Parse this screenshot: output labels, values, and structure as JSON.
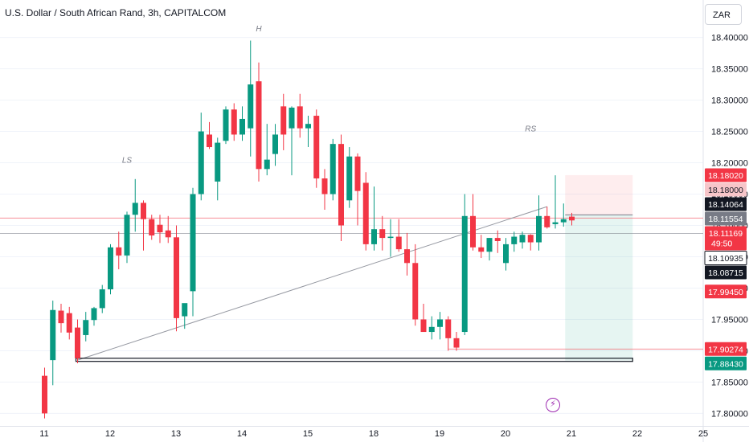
{
  "header": {
    "title": "U.S. Dollar / South African Rand, 3h, CAPITALCOM",
    "currency": "ZAR"
  },
  "colors": {
    "up": "#089981",
    "down": "#f23645",
    "grid": "#f0f3fa",
    "text": "#131722",
    "neutral": "#787b86",
    "marker": "#9c27b0"
  },
  "icons": {
    "event_marker": "lightning-bolt-icon"
  },
  "chart_data": {
    "type": "candlestick",
    "title": "U.S. Dollar / South African Rand, 3h, CAPITALCOM",
    "ylim": [
      17.78,
      18.42
    ],
    "y_ticks": [
      "18.40000",
      "18.35000",
      "18.30000",
      "18.25000",
      "18.20000",
      "18.15000",
      "18.10000",
      "18.05000",
      "18.00000",
      "17.95000",
      "17.90000",
      "17.85000",
      "17.80000"
    ],
    "x_ticks": [
      {
        "label": "11",
        "bar": 0
      },
      {
        "label": "12",
        "bar": 8
      },
      {
        "label": "13",
        "bar": 16
      },
      {
        "label": "14",
        "bar": 24
      },
      {
        "label": "15",
        "bar": 32
      },
      {
        "label": "18",
        "bar": 40
      },
      {
        "label": "19",
        "bar": 48
      },
      {
        "label": "20",
        "bar": 56
      },
      {
        "label": "21",
        "bar": 64
      },
      {
        "label": "22",
        "bar": 72
      },
      {
        "label": "25",
        "bar": 80
      }
    ],
    "candles": [
      {
        "o": 17.86,
        "h": 17.873,
        "l": 17.792,
        "c": 17.8
      },
      {
        "o": 17.885,
        "h": 17.98,
        "l": 17.845,
        "c": 17.965
      },
      {
        "o": 17.964,
        "h": 17.975,
        "l": 17.929,
        "c": 17.944
      },
      {
        "o": 17.96,
        "h": 17.97,
        "l": 17.918,
        "c": 17.929
      },
      {
        "o": 17.937,
        "h": 17.95,
        "l": 17.88,
        "c": 17.888
      },
      {
        "o": 17.925,
        "h": 17.962,
        "l": 17.915,
        "c": 17.949
      },
      {
        "o": 17.949,
        "h": 17.97,
        "l": 17.94,
        "c": 17.968
      },
      {
        "o": 17.968,
        "h": 18.005,
        "l": 17.96,
        "c": 17.998
      },
      {
        "o": 17.998,
        "h": 18.07,
        "l": 17.99,
        "c": 18.065
      },
      {
        "o": 18.065,
        "h": 18.09,
        "l": 18.03,
        "c": 18.052
      },
      {
        "o": 18.052,
        "h": 18.122,
        "l": 18.04,
        "c": 18.117
      },
      {
        "o": 18.117,
        "h": 18.174,
        "l": 18.09,
        "c": 18.136
      },
      {
        "o": 18.136,
        "h": 18.14,
        "l": 18.06,
        "c": 18.11
      },
      {
        "o": 18.11,
        "h": 18.117,
        "l": 18.077,
        "c": 18.084
      },
      {
        "o": 18.101,
        "h": 18.117,
        "l": 18.072,
        "c": 18.089
      },
      {
        "o": 18.092,
        "h": 18.115,
        "l": 18.072,
        "c": 18.081
      },
      {
        "o": 18.081,
        "h": 18.1,
        "l": 17.931,
        "c": 17.952
      },
      {
        "o": 17.955,
        "h": 17.972,
        "l": 17.935,
        "c": 17.976
      },
      {
        "o": 17.995,
        "h": 18.16,
        "l": 17.955,
        "c": 18.15
      },
      {
        "o": 18.15,
        "h": 18.28,
        "l": 18.14,
        "c": 18.25
      },
      {
        "o": 18.245,
        "h": 18.265,
        "l": 18.222,
        "c": 18.225
      },
      {
        "o": 18.17,
        "h": 18.24,
        "l": 18.14,
        "c": 18.232
      },
      {
        "o": 18.235,
        "h": 18.29,
        "l": 18.23,
        "c": 18.285
      },
      {
        "o": 18.285,
        "h": 18.295,
        "l": 18.235,
        "c": 18.245
      },
      {
        "o": 18.245,
        "h": 18.29,
        "l": 18.235,
        "c": 18.27
      },
      {
        "o": 18.255,
        "h": 18.395,
        "l": 18.21,
        "c": 18.325
      },
      {
        "o": 18.33,
        "h": 18.36,
        "l": 18.17,
        "c": 18.19
      },
      {
        "o": 18.19,
        "h": 18.262,
        "l": 18.18,
        "c": 18.205
      },
      {
        "o": 18.214,
        "h": 18.262,
        "l": 18.195,
        "c": 18.245
      },
      {
        "o": 18.29,
        "h": 18.31,
        "l": 18.22,
        "c": 18.245
      },
      {
        "o": 18.255,
        "h": 18.29,
        "l": 18.18,
        "c": 18.288
      },
      {
        "o": 18.29,
        "h": 18.31,
        "l": 18.24,
        "c": 18.255
      },
      {
        "o": 18.255,
        "h": 18.275,
        "l": 18.225,
        "c": 18.262
      },
      {
        "o": 18.275,
        "h": 18.285,
        "l": 18.16,
        "c": 18.175
      },
      {
        "o": 18.175,
        "h": 18.19,
        "l": 18.125,
        "c": 18.15
      },
      {
        "o": 18.15,
        "h": 18.238,
        "l": 18.14,
        "c": 18.23
      },
      {
        "o": 18.23,
        "h": 18.245,
        "l": 18.075,
        "c": 18.1
      },
      {
        "o": 18.14,
        "h": 18.225,
        "l": 18.128,
        "c": 18.21
      },
      {
        "o": 18.21,
        "h": 18.215,
        "l": 18.1,
        "c": 18.155
      },
      {
        "o": 18.168,
        "h": 18.185,
        "l": 18.06,
        "c": 18.07
      },
      {
        "o": 18.07,
        "h": 18.162,
        "l": 18.06,
        "c": 18.094
      },
      {
        "o": 18.094,
        "h": 18.115,
        "l": 18.06,
        "c": 18.08
      },
      {
        "o": 18.08,
        "h": 18.11,
        "l": 18.05,
        "c": 18.082
      },
      {
        "o": 18.082,
        "h": 18.11,
        "l": 18.058,
        "c": 18.062
      },
      {
        "o": 18.062,
        "h": 18.088,
        "l": 18.02,
        "c": 18.04
      },
      {
        "o": 18.04,
        "h": 18.07,
        "l": 17.94,
        "c": 17.95
      },
      {
        "o": 17.95,
        "h": 17.975,
        "l": 17.93,
        "c": 17.93
      },
      {
        "o": 17.93,
        "h": 17.955,
        "l": 17.918,
        "c": 17.938
      },
      {
        "o": 17.938,
        "h": 17.962,
        "l": 17.918,
        "c": 17.95
      },
      {
        "o": 17.95,
        "h": 17.955,
        "l": 17.9,
        "c": 17.92
      },
      {
        "o": 17.92,
        "h": 17.93,
        "l": 17.9,
        "c": 17.905
      },
      {
        "o": 17.93,
        "h": 18.15,
        "l": 17.925,
        "c": 18.115
      },
      {
        "o": 18.115,
        "h": 18.15,
        "l": 18.06,
        "c": 18.065
      },
      {
        "o": 18.065,
        "h": 18.085,
        "l": 18.048,
        "c": 18.058
      },
      {
        "o": 18.058,
        "h": 18.08,
        "l": 18.044,
        "c": 18.08
      },
      {
        "o": 18.08,
        "h": 18.092,
        "l": 18.056,
        "c": 18.075
      },
      {
        "o": 18.04,
        "h": 18.08,
        "l": 18.028,
        "c": 18.07
      },
      {
        "o": 18.07,
        "h": 18.09,
        "l": 18.058,
        "c": 18.082
      },
      {
        "o": 18.073,
        "h": 18.09,
        "l": 18.063,
        "c": 18.085
      },
      {
        "o": 18.085,
        "h": 18.086,
        "l": 18.06,
        "c": 18.073
      },
      {
        "o": 18.073,
        "h": 18.148,
        "l": 18.06,
        "c": 18.115
      },
      {
        "o": 18.115,
        "h": 18.13,
        "l": 18.095,
        "c": 18.097
      },
      {
        "o": 18.102,
        "h": 18.18,
        "l": 18.095,
        "c": 18.105
      },
      {
        "o": 18.105,
        "h": 18.135,
        "l": 18.098,
        "c": 18.11
      },
      {
        "o": 18.114,
        "h": 18.12,
        "l": 18.1,
        "c": 18.108
      }
    ],
    "annotations": [
      {
        "text": "LS",
        "bar": 10,
        "y": 18.2
      },
      {
        "text": "H",
        "bar": 26,
        "y": 18.41
      },
      {
        "text": "RS",
        "bar": 59,
        "y": 18.25
      }
    ],
    "price_labels": [
      {
        "text": "18.18020",
        "value": 18.1802,
        "style": "red"
      },
      {
        "text": "18.18000",
        "value": 18.18,
        "style": "pink"
      },
      {
        "text": "18.14064",
        "value": 18.14064,
        "style": "black"
      },
      {
        "text": "18.11554",
        "value": 18.11554,
        "style": "grey"
      },
      {
        "text": "18.11169",
        "sub": "49:50",
        "value": 18.11169,
        "style": "red"
      },
      {
        "text": "18.10935",
        "value": 18.10935,
        "style": "white"
      },
      {
        "text": "18.08715",
        "value": 18.08715,
        "style": "black"
      },
      {
        "text": "17.99450",
        "value": 17.9945,
        "style": "red"
      },
      {
        "text": "17.90274",
        "value": 17.90274,
        "style": "red"
      },
      {
        "text": "17.88430",
        "value": 17.8843,
        "style": "green"
      }
    ],
    "position": {
      "entry": 18.1169,
      "stop": 18.1802,
      "target": 17.8843,
      "start_bar": 63,
      "end_bar": 71
    },
    "neckline": {
      "x1_bar": 4,
      "y1": 17.885,
      "x2_bar": 61,
      "y2": 18.13
    },
    "support_zone": {
      "y_top": 17.888,
      "y_bottom": 17.883,
      "x1_bar": 4,
      "x2_bar": 71
    },
    "h_lines": [
      {
        "value": 18.1117,
        "color": "#f23645"
      },
      {
        "value": 18.0872,
        "color": "#787b86"
      },
      {
        "value": 17.9027,
        "color": "#f23645",
        "from_bar": 49
      }
    ]
  }
}
